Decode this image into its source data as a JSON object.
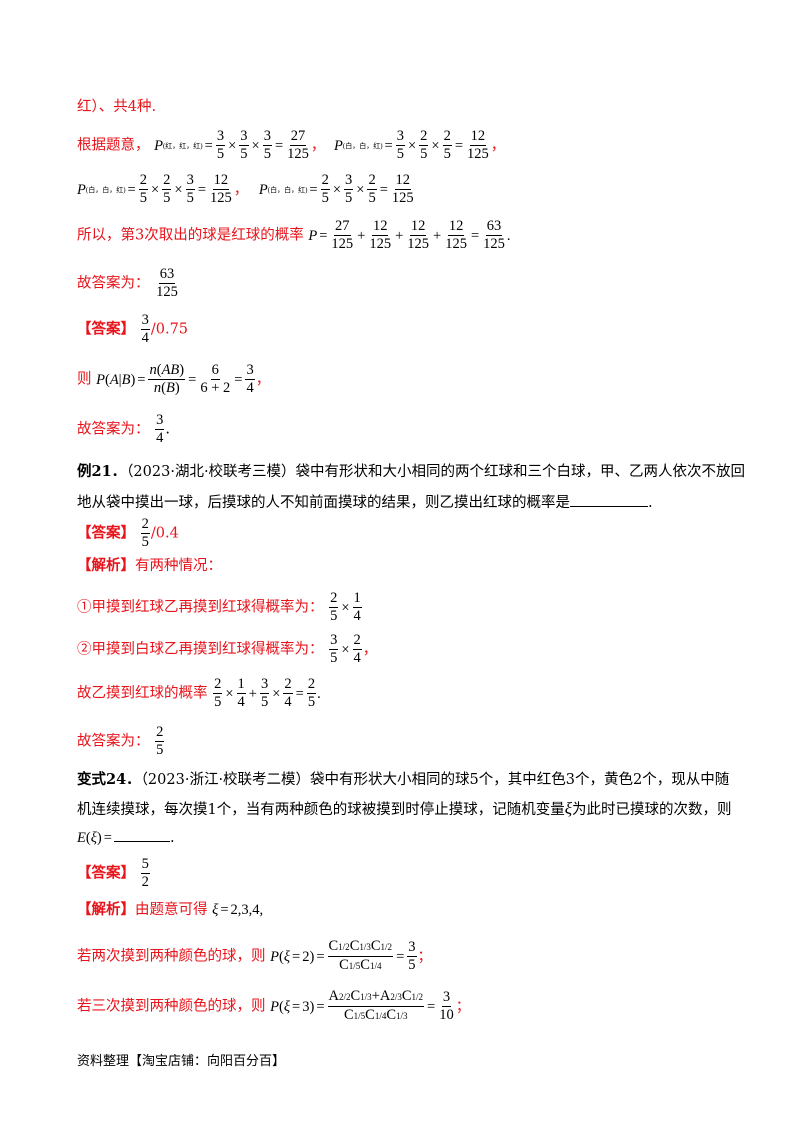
{
  "l1": "红）、共4种.",
  "l2_intro": "根据题意，",
  "p_red_red_red_label": "P",
  "p_red_red_red_sub": "(红，红，红)",
  "p_white_red_red_sub": "(白，白，红)",
  "p_red_white_red_sub": "(白，白，红)",
  "p_white_white_red_sub": "(白，白，红)",
  "l4_intro": "所以，第3次取出的球是红球的概率",
  "l5_intro": "故答案为：",
  "ans_tag": "【答案】",
  "ans1_alt": "/0.75",
  "l7_intro": "则",
  "l8_intro": "故答案为：",
  "ex21_label": "例21．",
  "ex21_text1": "（2023·湖北·校联考三模）袋中有形状和大小相同的两个红球和三个白球，甲、乙两人依次不放回",
  "ex21_text2": "地从袋中摸出一球，后摸球的人不知前面摸球的结果，则乙摸出红球的概率是",
  "ans2_alt": "/0.4",
  "jx_tag": "【解析】",
  "jx1_text": "有两种情况：",
  "case1": "①甲摸到红球乙再摸到红球得概率为：",
  "case2": "②甲摸到白球乙再摸到红球得概率为：",
  "l_final": "故乙摸到红球的概率",
  "l_ans3": "故答案为：",
  "var24_label": "变式24．",
  "var24_text1": "（2023·浙江·校联考二模）袋中有形状大小相同的球5个，其中红色3个，黄色2个，现从中随",
  "var24_text2": "机连续摸球，每次摸1个，当有两种颜色的球被摸到时停止摸球，记随机变量",
  "var24_text2b": "为此时已摸球的次数，则",
  "var24_text3": "E(ξ) =",
  "jx2_text": "由题意可得",
  "xi_vals": "ξ = 2,3,4,",
  "case_two": "若两次摸到两种颜色的球，则",
  "case_three": "若三次摸到两种颜色的球，则",
  "footer": "资料整理【淘宝店铺：向阳百分百】",
  "colors": {
    "red": "#e8141b",
    "text": "#000000"
  }
}
